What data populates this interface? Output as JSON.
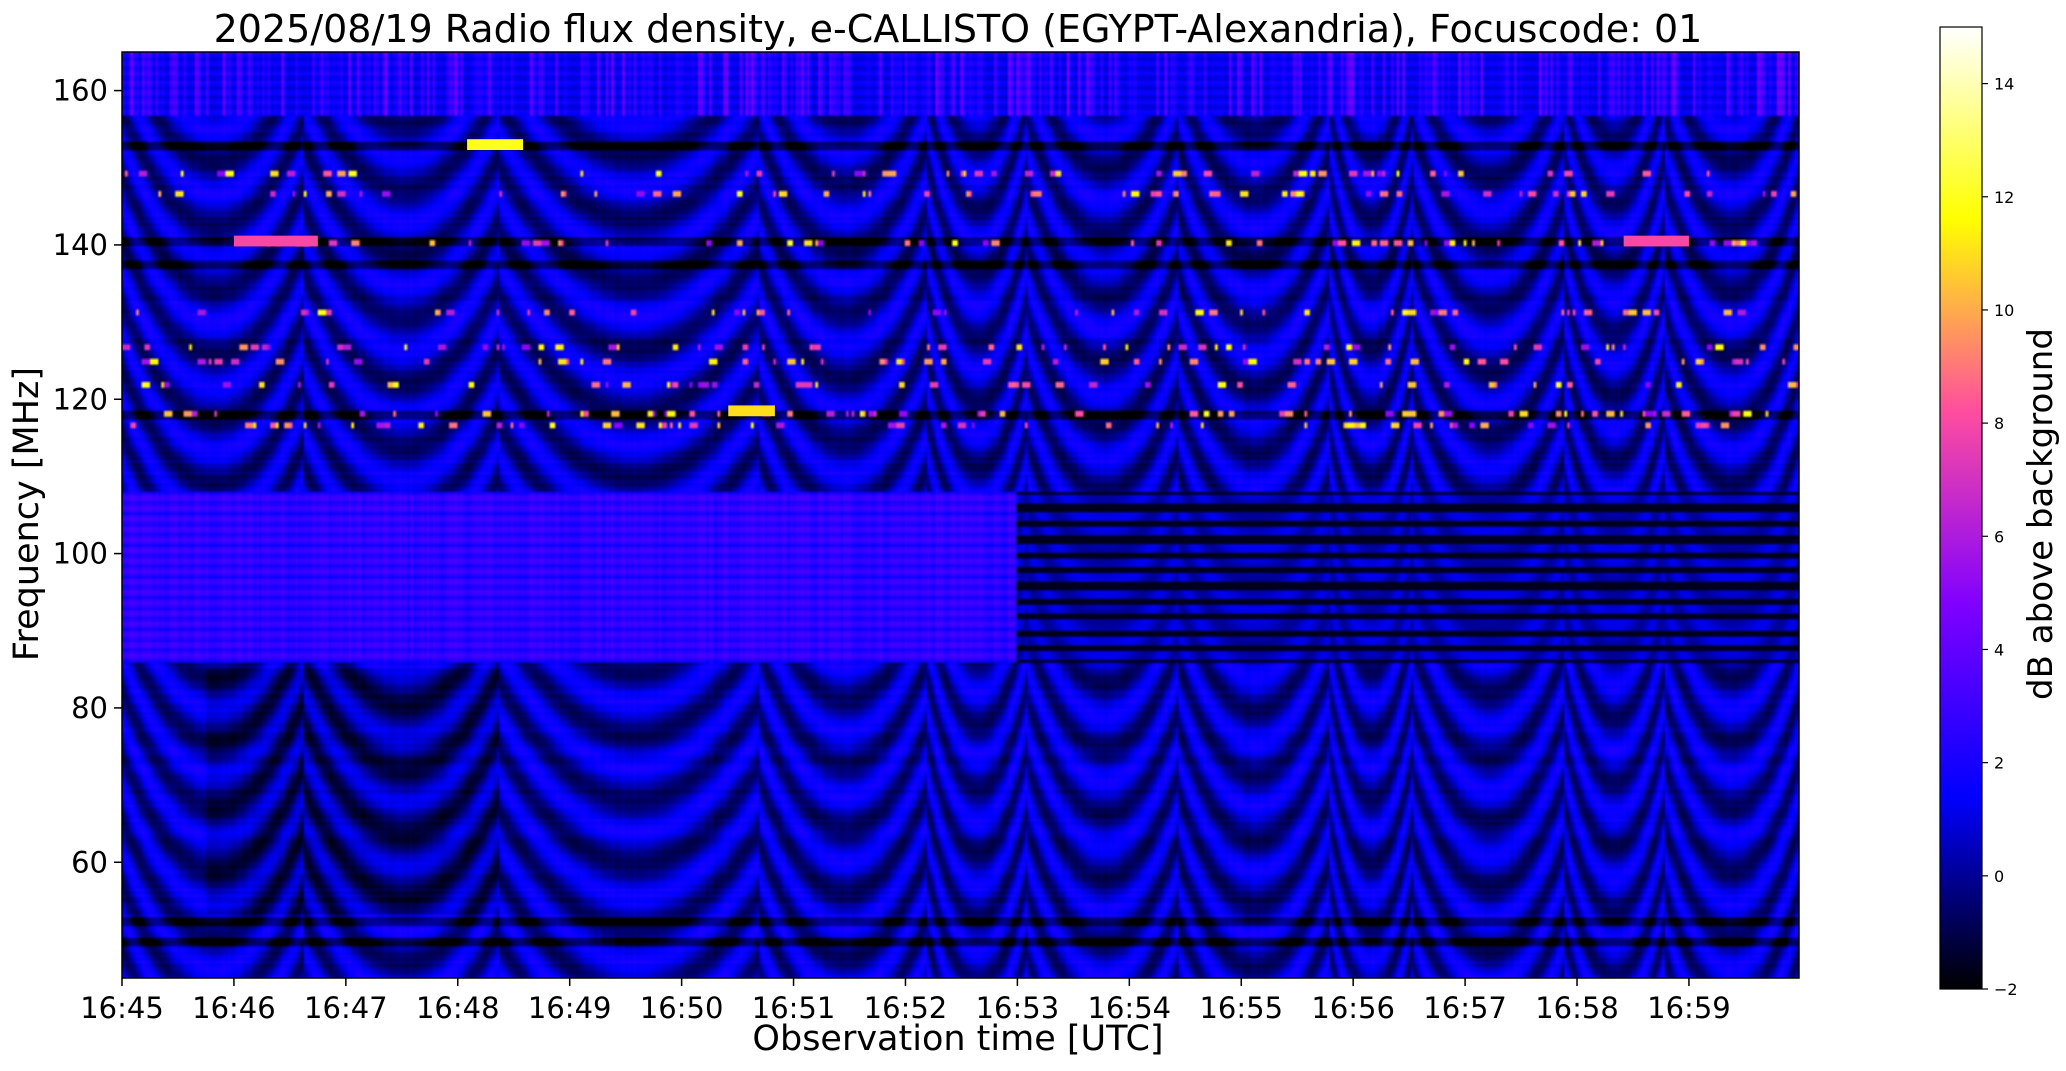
{
  "chart_data": {
    "type": "heatmap",
    "title": "2025/08/19  Radio flux density, e-CALLISTO (EGYPT-Alexandria), Focuscode: 01",
    "xlabel": "Observation time [UTC]",
    "ylabel": "Frequency [MHz]",
    "x_ticks": [
      "16:45",
      "16:46",
      "16:47",
      "16:48",
      "16:49",
      "16:50",
      "16:51",
      "16:52",
      "16:53",
      "16:54",
      "16:55",
      "16:56",
      "16:57",
      "16:58",
      "16:59"
    ],
    "xlim": [
      "16:45:00",
      "16:59:59"
    ],
    "y_ticks": [
      60,
      80,
      100,
      120,
      140,
      160
    ],
    "ylim": [
      45,
      165
    ],
    "colorbar": {
      "label": "dB above background",
      "ticks": [
        -2,
        0,
        2,
        4,
        6,
        8,
        10,
        12,
        14
      ],
      "range": [
        -2,
        15
      ],
      "colormap": "gnuplot2",
      "colors": [
        "#000000",
        "#0000ff",
        "#8000ff",
        "#ff4d9f",
        "#ffff00",
        "#ffffff"
      ]
    },
    "features": [
      {
        "name": "continuous band",
        "freq_mhz": [
          86,
          108
        ],
        "time": [
          "16:45",
          "16:53"
        ],
        "level_db": 3
      },
      {
        "name": "stripe",
        "freq_mhz": 153,
        "time": [
          "16:48:05",
          "16:48:35"
        ],
        "level_db": 12
      },
      {
        "name": "stripe",
        "freq_mhz": 140.5,
        "time": [
          "16:46",
          "16:46:45"
        ],
        "level_db": 8
      },
      {
        "name": "stripe",
        "freq_mhz": 140.5,
        "time": [
          "16:58:25",
          "16:59:00"
        ],
        "level_db": 8
      },
      {
        "name": "dot cluster",
        "freq_mhz": 118.5,
        "time": [
          "16:50:25",
          "16:50:50"
        ],
        "level_db": 11
      },
      {
        "name": "noise band",
        "freq_mhz": [
          157,
          165
        ],
        "time": [
          "16:45",
          "17:00"
        ],
        "level_db": 4
      }
    ]
  }
}
